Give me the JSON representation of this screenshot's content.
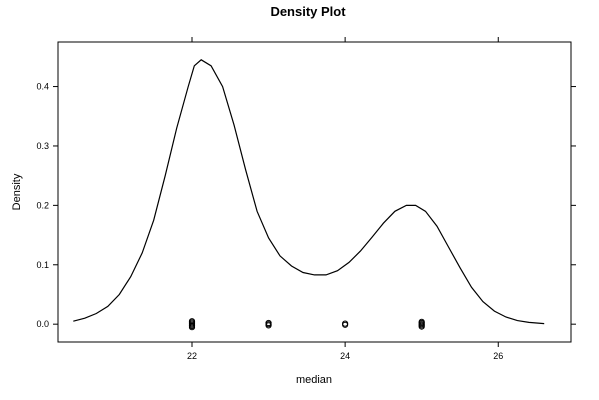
{
  "chart_data": {
    "type": "line",
    "title": "Density Plot",
    "xlabel": "median",
    "ylabel": "Density",
    "xlim": [
      20.25,
      26.95
    ],
    "ylim": [
      -0.03,
      0.475
    ],
    "x_ticks": [
      22,
      24,
      26
    ],
    "x_tick_labels": [
      "22",
      "24",
      "26"
    ],
    "y_ticks": [
      0.0,
      0.1,
      0.2,
      0.3,
      0.4
    ],
    "y_tick_labels": [
      "0.0",
      "0.1",
      "0.2",
      "0.3",
      "0.4"
    ],
    "grid": false,
    "legend": "none",
    "series": [
      {
        "x": [
          20.45,
          20.6,
          20.75,
          20.9,
          21.05,
          21.2,
          21.35,
          21.5,
          21.65,
          21.8,
          21.95,
          22.03,
          22.12,
          22.25,
          22.4,
          22.55,
          22.7,
          22.85,
          23.0,
          23.15,
          23.3,
          23.45,
          23.6,
          23.75,
          23.9,
          24.05,
          24.2,
          24.35,
          24.5,
          24.65,
          24.8,
          24.92,
          25.05,
          25.2,
          25.35,
          25.5,
          25.65,
          25.8,
          25.95,
          26.1,
          26.25,
          26.4,
          26.6
        ],
        "y": [
          0.005,
          0.01,
          0.018,
          0.03,
          0.05,
          0.08,
          0.12,
          0.175,
          0.25,
          0.33,
          0.4,
          0.435,
          0.445,
          0.435,
          0.4,
          0.335,
          0.26,
          0.19,
          0.145,
          0.115,
          0.098,
          0.087,
          0.083,
          0.083,
          0.09,
          0.104,
          0.123,
          0.146,
          0.17,
          0.19,
          0.2,
          0.2,
          0.19,
          0.165,
          0.13,
          0.095,
          0.062,
          0.038,
          0.022,
          0.012,
          0.006,
          0.003,
          0.001
        ]
      }
    ],
    "rug": [
      {
        "x": 22.0,
        "count": 6
      },
      {
        "x": 23.0,
        "count": 3
      },
      {
        "x": 24.0,
        "count": 2
      },
      {
        "x": 25.0,
        "count": 5
      }
    ]
  }
}
